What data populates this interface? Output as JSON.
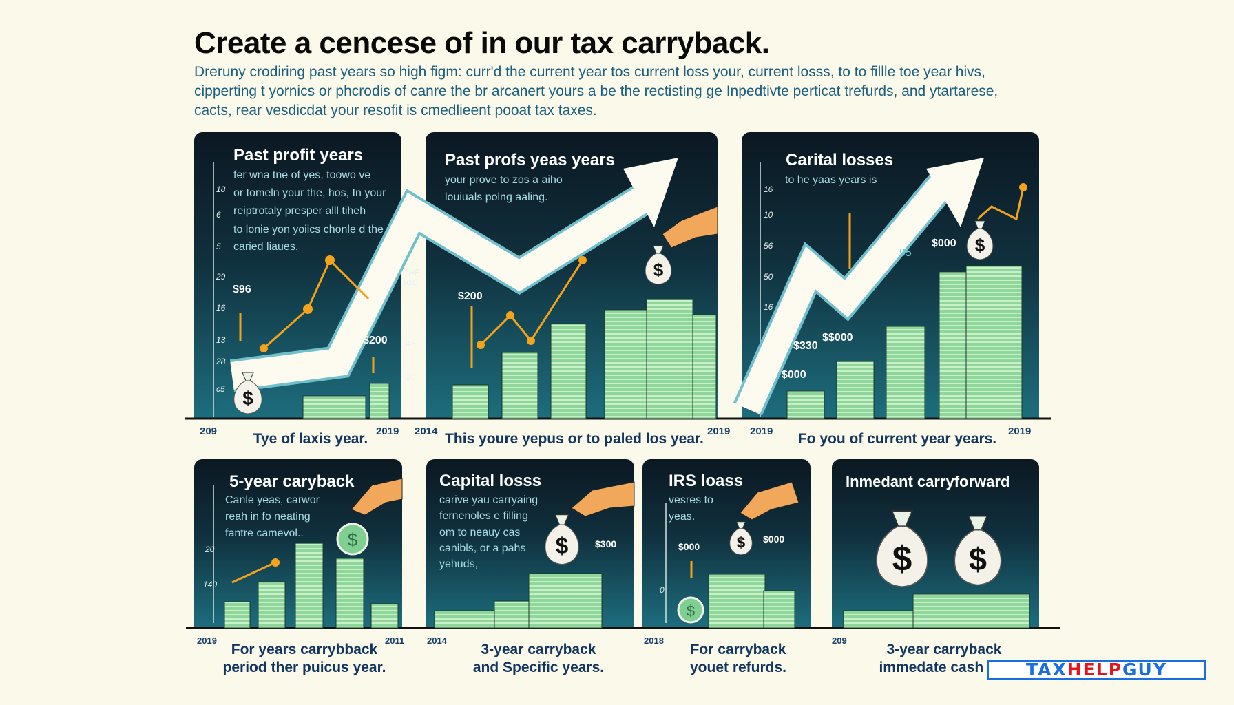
{
  "header": {
    "title": "Create a cencese of in our tax carryback.",
    "subtitle_lines": [
      "Dreruny crodiring past years so high figm: curr'd the current year tos current loss your, current losss, to to fillle toe year hivs,",
      "cipperting t yornics or phcrodis of canre the br arcanert yours a be the rectisting ge Inpedtivte perticat trefurds, and ytartarese,",
      "cacts, rear vesdicdat your resofit is cmedlieent pooat tax taxes."
    ]
  },
  "top_panels": [
    {
      "title": "Past profit years",
      "body": [
        "fer wna tne of yes, toowo ve",
        "or tomeln your the, hos, In your",
        "reiptrotaly presper alll tiheh",
        "to lonie yon yoiics chonle d the",
        "caried liaues."
      ],
      "ticks": [
        "18",
        "6",
        "5",
        "29",
        "16",
        "13",
        "28",
        "c5"
      ],
      "annotations": [
        "$96",
        "$200"
      ],
      "year_start": "209",
      "year_end": "2019",
      "caption": "Tye of laxis year."
    },
    {
      "title": "Past profs yeas years",
      "body": [
        "your prove to zos a aiho",
        "louiuals polng aaling."
      ],
      "ticks": [
        "THE",
        "910",
        "46",
        "20"
      ],
      "annotations": [
        "$200"
      ],
      "year_start": "2014",
      "year_end": "2019",
      "caption": "This youre yepus or to paled los year."
    },
    {
      "title": "Carital losses",
      "body": [
        "to he yaas years is"
      ],
      "ticks": [
        "16",
        "10",
        "56",
        "50",
        "16"
      ],
      "annotations": [
        "95",
        "$000",
        "$330",
        "$$000",
        "$000"
      ],
      "year_start": "2019",
      "year_end": "2019",
      "caption": "Fo you of current year years."
    }
  ],
  "bottom_panels": [
    {
      "title": "5-year caryback",
      "body": [
        "Canle yeas, carwor",
        "reah in fo neating",
        "fantre camevol.."
      ],
      "ticks": [
        "20",
        "140"
      ],
      "year_start": "2019",
      "year_end": "2011",
      "caption": [
        "For years carrybback",
        "period ther puicus year."
      ]
    },
    {
      "title": "Capital losss",
      "body": [
        "carive yau carryaing",
        "fernenoles e filling",
        "om to neauy cas",
        "canibls, or a pahs",
        "yehuds,"
      ],
      "annotations": [
        "$300"
      ],
      "year_start": "2014",
      "caption": [
        "3-year carryback",
        "and Specific years."
      ]
    },
    {
      "title": "IRS loass",
      "body": [
        "vesres to",
        "yeas."
      ],
      "ticks": [
        "0"
      ],
      "annotations": [
        "$000",
        "$000"
      ],
      "year_start": "2018",
      "caption": [
        "For carryback",
        "youet refurds."
      ]
    },
    {
      "title": "Inmedant carryforward",
      "year_start": "209",
      "caption": [
        "3-year carryback",
        "immedate cash the"
      ]
    }
  ],
  "watermark": {
    "part1": "TAX",
    "part2": "HELP",
    "part3": "GUY"
  },
  "colors": {
    "background": "#fbf9ea",
    "panel_dark": "#0b1822",
    "panel_teal": "#1d6e7e",
    "money_green": "#8fd69a",
    "accent_orange": "#f5a31a",
    "caption_navy": "#123560",
    "watermark_blue": "#1a6fe0",
    "watermark_red": "#e8141c"
  }
}
